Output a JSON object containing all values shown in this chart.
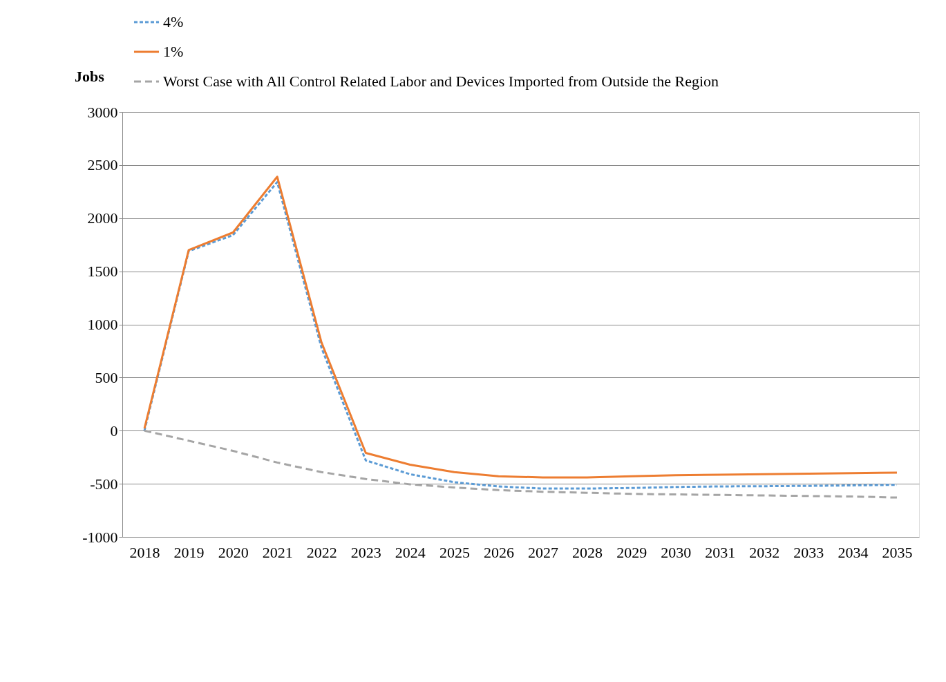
{
  "chart_data": {
    "type": "line",
    "ylabel": "Jobs",
    "categories": [
      "2018",
      "2019",
      "2020",
      "2021",
      "2022",
      "2023",
      "2024",
      "2025",
      "2026",
      "2027",
      "2028",
      "2029",
      "2030",
      "2031",
      "2032",
      "2033",
      "2034",
      "2035"
    ],
    "series": [
      {
        "name": "4%",
        "color": "#5b9bd5",
        "line_style": "dotted",
        "values": [
          0,
          1690,
          1840,
          2340,
          780,
          -280,
          -410,
          -485,
          -525,
          -545,
          -545,
          -540,
          -530,
          -525,
          -523,
          -520,
          -515,
          -510
        ]
      },
      {
        "name": "1%",
        "color": "#ed7d31",
        "line_style": "solid",
        "values": [
          20,
          1700,
          1865,
          2390,
          830,
          -210,
          -320,
          -390,
          -430,
          -440,
          -440,
          -430,
          -420,
          -415,
          -410,
          -405,
          -400,
          -395
        ]
      },
      {
        "name": "Worst Case with All Control Related Labor and Devices Imported from Outside the Region",
        "color": "#a5a5a5",
        "line_style": "dashed",
        "values": [
          0,
          -95,
          -190,
          -300,
          -390,
          -455,
          -505,
          -535,
          -560,
          -575,
          -585,
          -595,
          -600,
          -605,
          -610,
          -615,
          -620,
          -630
        ]
      }
    ],
    "ylim": [
      -1000,
      3000
    ],
    "yticks": [
      -1000,
      -500,
      0,
      500,
      1000,
      1500,
      2000,
      2500,
      3000
    ],
    "grid": "y",
    "legend": "top left",
    "marker": "none"
  }
}
